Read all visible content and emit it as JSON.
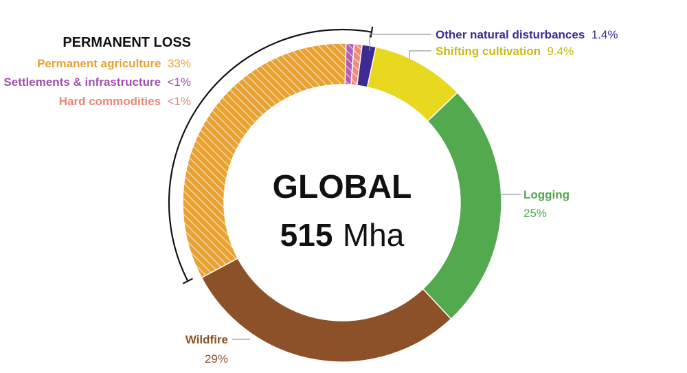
{
  "chart_data": {
    "type": "pie",
    "center": {
      "title": "GLOBAL",
      "total_value": "515",
      "total_unit": "Mha"
    },
    "group_label": "PERMANENT LOSS",
    "slices": [
      {
        "label": "Other natural disturbances",
        "value_text": "1.4%",
        "value": 1.4,
        "color": "#3d2a93",
        "hatched": false
      },
      {
        "label": "Shifting cultivation",
        "value_text": "9.4%",
        "value": 9.4,
        "color": "#e8d81f",
        "hatched": false
      },
      {
        "label": "Logging",
        "value_text": "25%",
        "value": 25,
        "color": "#52a94e",
        "hatched": false
      },
      {
        "label": "Wildfire",
        "value_text": "29%",
        "value": 29,
        "color": "#8c5129",
        "hatched": false
      },
      {
        "label": "Permanent agriculture",
        "value_text": "33%",
        "value": 33,
        "color": "#e8a233",
        "hatched": true
      },
      {
        "label": "Settlements & infrastructure",
        "value_text": "<1%",
        "value": 0.8,
        "color": "#b05cb8",
        "hatched": true
      },
      {
        "label": "Hard commodities",
        "value_text": "<1%",
        "value": 0.8,
        "color": "#ee8a7c",
        "hatched": true
      }
    ]
  }
}
